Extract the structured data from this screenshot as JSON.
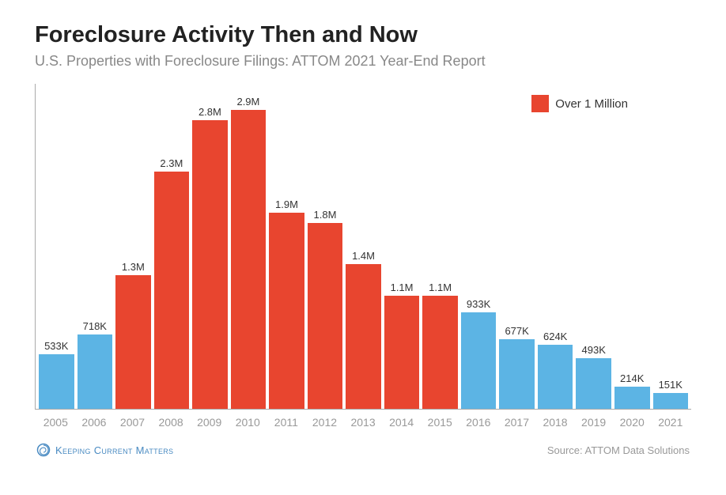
{
  "title": "Foreclosure Activity Then and Now",
  "subtitle": "U.S. Properties with Foreclosure Filings: ATTOM 2021 Year-End Report",
  "legend": {
    "label": "Over 1 Million",
    "swatch_color": "#e8452f"
  },
  "chart": {
    "type": "bar",
    "y_max": 2900000,
    "threshold": 1000000,
    "axis_color": "#aaaaaa",
    "background_color": "#ffffff",
    "bar_color_over": "#e8452f",
    "bar_color_under": "#5cb4e4",
    "label_fontsize": 13,
    "label_color": "#333333",
    "xaxis_fontsize": 14,
    "xaxis_color": "#999999",
    "bars": [
      {
        "year": "2005",
        "value": 533000,
        "label": "533K"
      },
      {
        "year": "2006",
        "value": 718000,
        "label": "718K"
      },
      {
        "year": "2007",
        "value": 1300000,
        "label": "1.3M"
      },
      {
        "year": "2008",
        "value": 2300000,
        "label": "2.3M"
      },
      {
        "year": "2009",
        "value": 2800000,
        "label": "2.8M"
      },
      {
        "year": "2010",
        "value": 2900000,
        "label": "2.9M"
      },
      {
        "year": "2011",
        "value": 1900000,
        "label": "1.9M"
      },
      {
        "year": "2012",
        "value": 1800000,
        "label": "1.8M"
      },
      {
        "year": "2013",
        "value": 1400000,
        "label": "1.4M"
      },
      {
        "year": "2014",
        "value": 1100000,
        "label": "1.1M"
      },
      {
        "year": "2015",
        "value": 1100000,
        "label": "1.1M"
      },
      {
        "year": "2016",
        "value": 933000,
        "label": "933K"
      },
      {
        "year": "2017",
        "value": 677000,
        "label": "677K"
      },
      {
        "year": "2018",
        "value": 624000,
        "label": "624K"
      },
      {
        "year": "2019",
        "value": 493000,
        "label": "493K"
      },
      {
        "year": "2020",
        "value": 214000,
        "label": "214K"
      },
      {
        "year": "2021",
        "value": 151000,
        "label": "151K"
      }
    ]
  },
  "brand": {
    "name": "Keeping Current Matters",
    "color": "#4a8bc2"
  },
  "source": "Source: ATTOM Data Solutions"
}
